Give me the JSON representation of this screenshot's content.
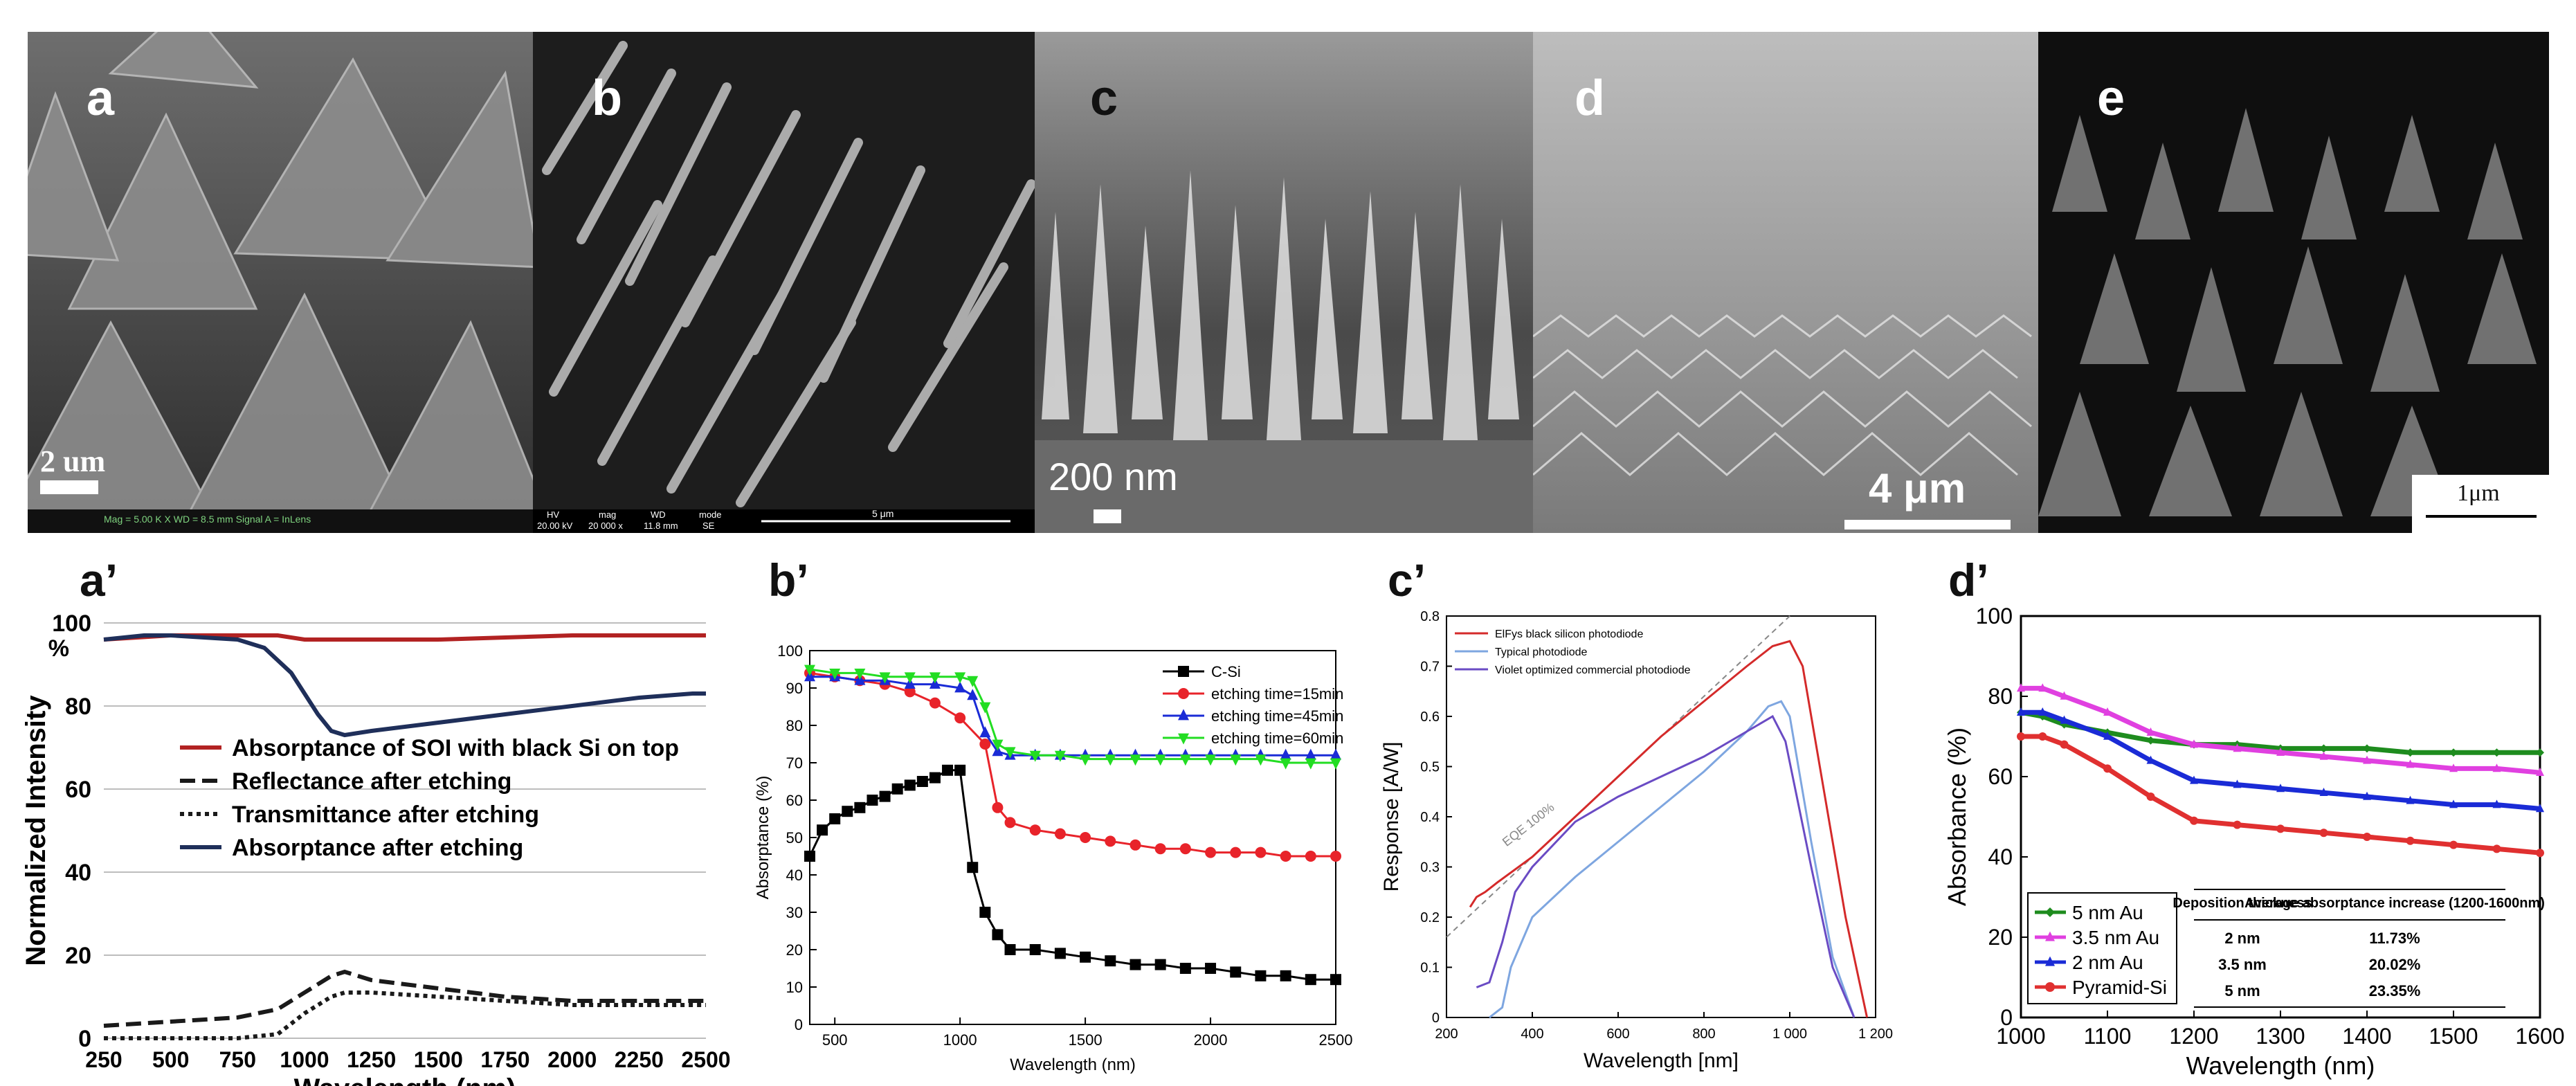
{
  "sem_panels": [
    {
      "label": "a",
      "scale": "2 um",
      "footer": "Mag = 5.00 K X    WD = 8.5 mm    Signal A = InLens",
      "colors": {
        "bg": "#3a3a3a",
        "hi": "#b0b0b0"
      }
    },
    {
      "label": "b",
      "scale": "",
      "footer_cols": [
        "HV",
        "mag",
        "WD",
        "mode"
      ],
      "footer_vals": [
        "20.00 kV",
        "20 000 x",
        "11.8 mm",
        "SE"
      ],
      "footer_scale": "5 μm",
      "colors": {
        "bg": "#1a1a1a",
        "hi": "#c8c8c8"
      }
    },
    {
      "label": "c",
      "scale": "200 nm",
      "colors": {
        "bg": "#555555",
        "hi": "#e6e6e6"
      }
    },
    {
      "label": "d",
      "scale": "4 μm",
      "colors": {
        "bg": "#8a8a8a",
        "hi": "#d0d0d0"
      }
    },
    {
      "label": "e",
      "scale": "1μm",
      "colors": {
        "bg": "#0d0d0d",
        "hi": "#9a9a9a"
      }
    }
  ],
  "chart_labels": {
    "a": "a’",
    "b": "b’",
    "c": "c’",
    "d": "d’"
  },
  "chart_data": [
    {
      "id": "a_prime",
      "type": "line",
      "title": "",
      "xlabel": "Wavelength (nm)",
      "ylabel": "Normalized Intensity",
      "xlim": [
        250,
        2500
      ],
      "ylim": [
        0,
        100
      ],
      "xticks": [
        250,
        500,
        750,
        1000,
        1250,
        1500,
        1750,
        2000,
        2250,
        2500
      ],
      "yticks": [
        0,
        20,
        40,
        60,
        80,
        100
      ],
      "ytick_extra": "%",
      "grid": true,
      "series": [
        {
          "name": "Absorptance of SOI with black Si on top",
          "color": "#b22222",
          "style": "solid",
          "x": [
            250,
            500,
            750,
            900,
            1000,
            1250,
            1500,
            1750,
            2000,
            2250,
            2450,
            2500
          ],
          "y": [
            96,
            97,
            97,
            97,
            96,
            96,
            96,
            96.5,
            97,
            97,
            97,
            97
          ]
        },
        {
          "name": "Reflectance after etching",
          "color": "#1a1a1a",
          "style": "dashed",
          "x": [
            250,
            500,
            750,
            900,
            1000,
            1100,
            1150,
            1250,
            1500,
            1750,
            2000,
            2250,
            2500
          ],
          "y": [
            3,
            4,
            5,
            7,
            11,
            15,
            16,
            14,
            12,
            10,
            9,
            9,
            9
          ]
        },
        {
          "name": "Transmittance after etching",
          "color": "#1a1a1a",
          "style": "dotted",
          "x": [
            250,
            500,
            750,
            900,
            1000,
            1100,
            1150,
            1250,
            1500,
            1750,
            2000,
            2250,
            2500
          ],
          "y": [
            0,
            0,
            0,
            1,
            6,
            10,
            11,
            11,
            10,
            9,
            8,
            8,
            8
          ]
        },
        {
          "name": "Absorptance after etching",
          "color": "#1f2f5a",
          "style": "solid",
          "x": [
            250,
            400,
            500,
            750,
            850,
            950,
            1050,
            1100,
            1150,
            1250,
            1500,
            1750,
            2000,
            2250,
            2450,
            2500
          ],
          "y": [
            96,
            97,
            97,
            96,
            94,
            88,
            78,
            74,
            73,
            74,
            76,
            78,
            80,
            82,
            83,
            83
          ]
        }
      ]
    },
    {
      "id": "b_prime",
      "type": "line",
      "xlabel": "Wavelength (nm)",
      "ylabel": "Absorptance (%)",
      "xlim": [
        400,
        2500
      ],
      "ylim": [
        0,
        100
      ],
      "xticks": [
        500,
        1000,
        1500,
        2000,
        2500
      ],
      "yticks": [
        0,
        10,
        20,
        30,
        40,
        50,
        60,
        70,
        80,
        90,
        100
      ],
      "legend": "top-right",
      "series": [
        {
          "name": "C-Si",
          "color": "#000000",
          "marker": "square",
          "x": [
            400,
            450,
            500,
            550,
            600,
            650,
            700,
            750,
            800,
            850,
            900,
            950,
            1000,
            1050,
            1100,
            1150,
            1200,
            1300,
            1400,
            1500,
            1600,
            1700,
            1800,
            1900,
            2000,
            2100,
            2200,
            2300,
            2400,
            2500
          ],
          "y": [
            45,
            52,
            55,
            57,
            58,
            60,
            61,
            63,
            64,
            65,
            66,
            68,
            68,
            42,
            30,
            24,
            20,
            20,
            19,
            18,
            17,
            16,
            16,
            15,
            15,
            14,
            13,
            13,
            12,
            12
          ]
        },
        {
          "name": "etching time=15min",
          "color": "#e8232a",
          "marker": "circle",
          "x": [
            400,
            500,
            600,
            700,
            800,
            900,
            1000,
            1100,
            1150,
            1200,
            1300,
            1400,
            1500,
            1600,
            1700,
            1800,
            1900,
            2000,
            2100,
            2200,
            2300,
            2400,
            2500
          ],
          "y": [
            94,
            93,
            92,
            91,
            89,
            86,
            82,
            75,
            58,
            54,
            52,
            51,
            50,
            49,
            48,
            47,
            47,
            46,
            46,
            46,
            45,
            45,
            45
          ]
        },
        {
          "name": "etching time=45min",
          "color": "#1a2bd6",
          "marker": "triangle",
          "x": [
            400,
            500,
            600,
            700,
            800,
            900,
            1000,
            1050,
            1100,
            1150,
            1200,
            1300,
            1400,
            1500,
            1600,
            1700,
            1800,
            1900,
            2000,
            2100,
            2200,
            2300,
            2400,
            2500
          ],
          "y": [
            93,
            93,
            92,
            92,
            91,
            91,
            90,
            88,
            78,
            73,
            72,
            72,
            72,
            72,
            72,
            72,
            72,
            72,
            72,
            72,
            72,
            72,
            72,
            72
          ]
        },
        {
          "name": "etching time=60min",
          "color": "#22dd22",
          "marker": "triangle-down",
          "x": [
            400,
            500,
            600,
            700,
            800,
            900,
            1000,
            1050,
            1100,
            1150,
            1200,
            1300,
            1400,
            1500,
            1600,
            1700,
            1800,
            1900,
            2000,
            2100,
            2200,
            2300,
            2400,
            2500
          ],
          "y": [
            95,
            94,
            94,
            93,
            93,
            93,
            93,
            92,
            85,
            75,
            73,
            72,
            72,
            71,
            71,
            71,
            71,
            71,
            71,
            71,
            71,
            70,
            70,
            70
          ]
        }
      ]
    },
    {
      "id": "c_prime",
      "type": "line",
      "xlabel": "Wavelength [nm]",
      "ylabel": "Response [A/W]",
      "xlim": [
        200,
        1200
      ],
      "ylim": [
        0,
        0.8
      ],
      "xticks": [
        200,
        400,
        600,
        800,
        1000,
        1200
      ],
      "xtick_labels": [
        "200",
        "400",
        "600",
        "800",
        "1 000",
        "1 200"
      ],
      "yticks": [
        0,
        0.1,
        0.2,
        0.3,
        0.4,
        0.5,
        0.6,
        0.7,
        0.8
      ],
      "legend": "top-left",
      "annotation": "EQE 100%",
      "series": [
        {
          "name": "ElFys black silicon photodiode",
          "color": "#d42a2a",
          "x": [
            255,
            270,
            290,
            320,
            400,
            500,
            600,
            700,
            800,
            900,
            960,
            1000,
            1030,
            1080,
            1130,
            1180
          ],
          "y": [
            0.22,
            0.24,
            0.25,
            0.27,
            0.32,
            0.4,
            0.48,
            0.56,
            0.63,
            0.7,
            0.74,
            0.75,
            0.7,
            0.45,
            0.2,
            0.0
          ]
        },
        {
          "name": "Typical photodiode",
          "color": "#7ea6e0",
          "x": [
            300,
            330,
            350,
            400,
            500,
            600,
            700,
            800,
            900,
            950,
            980,
            1000,
            1050,
            1100,
            1150
          ],
          "y": [
            0.0,
            0.02,
            0.1,
            0.2,
            0.28,
            0.35,
            0.42,
            0.49,
            0.57,
            0.62,
            0.63,
            0.6,
            0.35,
            0.12,
            0.0
          ]
        },
        {
          "name": "Violet optimized commercial photodiode",
          "color": "#6a4bc4",
          "x": [
            270,
            300,
            330,
            360,
            400,
            500,
            600,
            700,
            800,
            900,
            960,
            990,
            1050,
            1100,
            1150
          ],
          "y": [
            0.06,
            0.07,
            0.15,
            0.25,
            0.3,
            0.39,
            0.44,
            0.48,
            0.52,
            0.57,
            0.6,
            0.55,
            0.3,
            0.1,
            0.0
          ]
        }
      ]
    },
    {
      "id": "d_prime",
      "type": "line",
      "xlabel": "Wavelength (nm)",
      "ylabel": "Absorbance (%)",
      "xlim": [
        1000,
        1600
      ],
      "ylim": [
        0,
        100
      ],
      "xticks": [
        1000,
        1100,
        1200,
        1300,
        1400,
        1500,
        1600
      ],
      "yticks": [
        0,
        20,
        40,
        60,
        80,
        100
      ],
      "legend": "bottom-left",
      "series": [
        {
          "name": "5 nm Au",
          "color": "#1e8c1e",
          "marker": "diamond",
          "x": [
            1000,
            1025,
            1050,
            1100,
            1150,
            1200,
            1250,
            1300,
            1350,
            1400,
            1450,
            1500,
            1550,
            1600
          ],
          "y": [
            76,
            75,
            73,
            71,
            69,
            68,
            68,
            67,
            67,
            67,
            66,
            66,
            66,
            66
          ]
        },
        {
          "name": "3.5 nm Au",
          "color": "#e040e0",
          "marker": "triangle",
          "x": [
            1000,
            1025,
            1050,
            1100,
            1150,
            1200,
            1250,
            1300,
            1350,
            1400,
            1450,
            1500,
            1550,
            1600
          ],
          "y": [
            82,
            82,
            80,
            76,
            71,
            68,
            67,
            66,
            65,
            64,
            63,
            62,
            62,
            61
          ]
        },
        {
          "name": "2 nm Au",
          "color": "#1a2bd6",
          "marker": "triangle",
          "x": [
            1000,
            1025,
            1050,
            1100,
            1150,
            1200,
            1250,
            1300,
            1350,
            1400,
            1450,
            1500,
            1550,
            1600
          ],
          "y": [
            76,
            76,
            74,
            70,
            64,
            59,
            58,
            57,
            56,
            55,
            54,
            53,
            53,
            52
          ]
        },
        {
          "name": "Pyramid-Si",
          "color": "#e03030",
          "marker": "circle",
          "x": [
            1000,
            1025,
            1050,
            1100,
            1150,
            1200,
            1250,
            1300,
            1350,
            1400,
            1450,
            1500,
            1550,
            1600
          ],
          "y": [
            70,
            70,
            68,
            62,
            55,
            49,
            48,
            47,
            46,
            45,
            44,
            43,
            42,
            41
          ]
        }
      ],
      "table": {
        "headers": [
          "Deposition thickness",
          "Average absorptance increase (1200-1600nm)"
        ],
        "rows": [
          [
            "2 nm",
            "11.73%"
          ],
          [
            "3.5 nm",
            "20.02%"
          ],
          [
            "5 nm",
            "23.35%"
          ]
        ]
      }
    }
  ]
}
